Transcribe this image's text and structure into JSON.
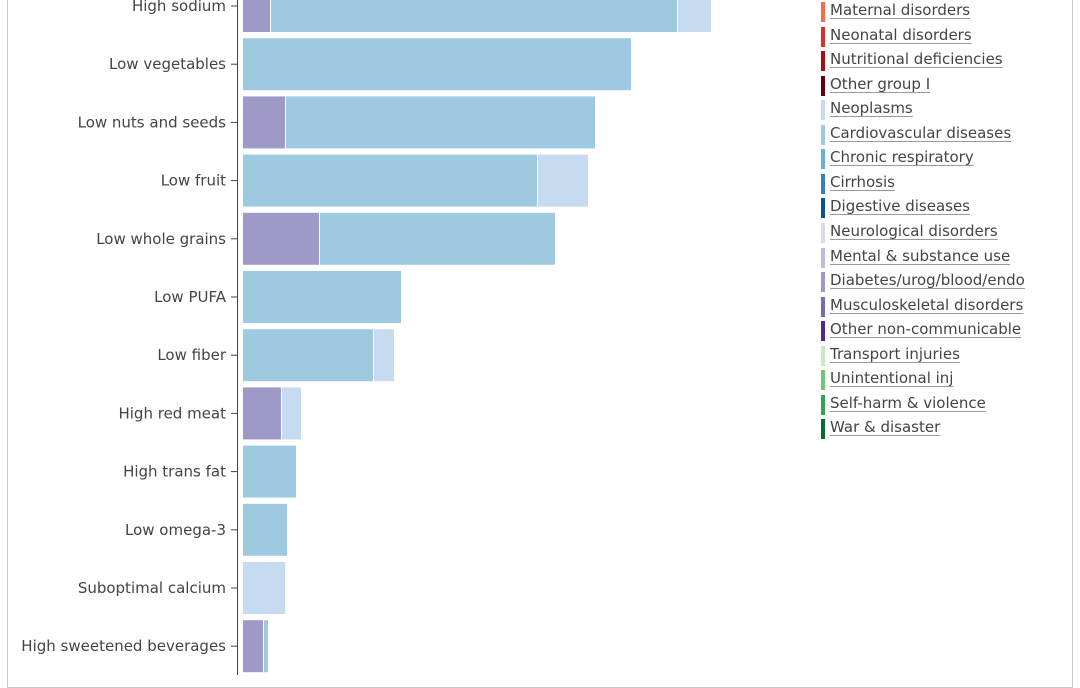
{
  "chart_data": {
    "type": "bar",
    "orientation": "horizontal",
    "stacked": true,
    "categories": [
      "High sodium",
      "Low vegetables",
      "Low nuts and seeds",
      "Low fruit",
      "Low whole grains",
      "Low PUFA",
      "Low fiber",
      "High red meat",
      "High trans fat",
      "Low omega-3",
      "Suboptimal calcium",
      "High sweetened beverages"
    ],
    "series": [
      {
        "name": "Diabetes/urog/blood/endo",
        "color": "#9e9ac8",
        "values": [
          28,
          0,
          43,
          0,
          77,
          0,
          0,
          39,
          0,
          0,
          0,
          21
        ]
      },
      {
        "name": "Cardiovascular diseases",
        "color": "#9ecae1",
        "values": [
          407,
          389,
          310,
          295,
          236,
          159,
          131,
          0,
          54,
          45,
          0,
          5
        ]
      },
      {
        "name": "Neoplasms",
        "color": "#c6dbef",
        "values": [
          34,
          0,
          0,
          51,
          0,
          0,
          21,
          20,
          0,
          0,
          43,
          0
        ]
      }
    ],
    "legend": {
      "placement": "top-right",
      "items": [
        {
          "name": "Maternal disorders",
          "color": "#fb6a4a"
        },
        {
          "name": "Neonatal disorders",
          "color": "#de2d26"
        },
        {
          "name": "Nutritional deficiencies",
          "color": "#a50f15"
        },
        {
          "name": "Other group I",
          "color": "#67000d"
        },
        {
          "name": "Neoplasms",
          "color": "#c6dbef"
        },
        {
          "name": "Cardiovascular diseases",
          "color": "#9ecae1"
        },
        {
          "name": "Chronic respiratory",
          "color": "#6baed6"
        },
        {
          "name": "Cirrhosis",
          "color": "#3182bd"
        },
        {
          "name": "Digestive diseases",
          "color": "#08519c"
        },
        {
          "name": "Neurological disorders",
          "color": "#dadaeb"
        },
        {
          "name": "Mental & substance use",
          "color": "#bcbddc"
        },
        {
          "name": "Diabetes/urog/blood/endo",
          "color": "#9e9ac8"
        },
        {
          "name": "Musculoskeletal disorders",
          "color": "#756bb1"
        },
        {
          "name": "Other non-communicable",
          "color": "#54278f"
        },
        {
          "name": "Transport injuries",
          "color": "#c7e9c0"
        },
        {
          "name": "Unintentional inj",
          "color": "#74c476"
        },
        {
          "name": "Self-harm & violence",
          "color": "#31a354"
        },
        {
          "name": "War & disaster",
          "color": "#006d2c"
        }
      ]
    },
    "title": "",
    "xlabel": "",
    "ylabel": "",
    "grid": false
  }
}
